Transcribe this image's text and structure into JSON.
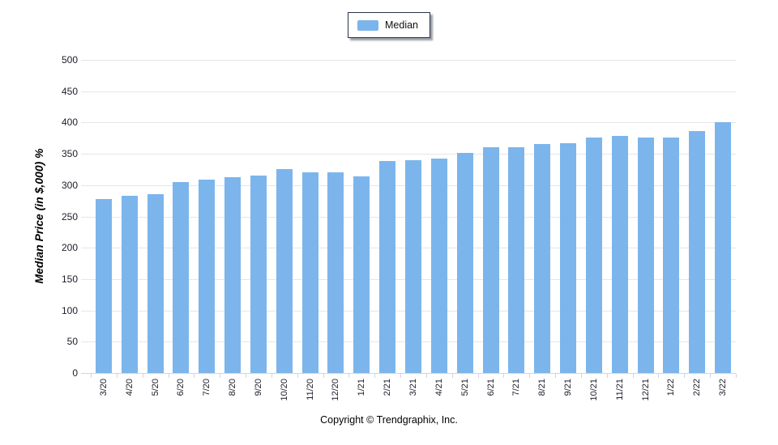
{
  "legend": {
    "label": "Median"
  },
  "footer": {
    "copyright": "Copyright © Trendgraphix, Inc."
  },
  "chart_data": {
    "type": "bar",
    "title": "",
    "categories": [
      "3/20",
      "4/20",
      "5/20",
      "6/20",
      "7/20",
      "8/20",
      "9/20",
      "10/20",
      "11/20",
      "12/20",
      "1/21",
      "2/21",
      "3/21",
      "4/21",
      "5/21",
      "6/21",
      "7/21",
      "8/21",
      "9/21",
      "10/21",
      "11/21",
      "12/21",
      "1/22",
      "2/22",
      "3/22"
    ],
    "series": [
      {
        "name": "Median",
        "color": "#7cb5ec",
        "values": [
          278,
          283,
          285,
          305,
          309,
          313,
          315,
          325,
          321,
          320,
          314,
          338,
          340,
          342,
          351,
          360,
          360,
          365,
          367,
          376,
          378,
          376,
          376,
          386,
          401
        ]
      }
    ],
    "xlabel": "",
    "ylabel": "Median Price (in $,000) %",
    "ylim": [
      0,
      500
    ],
    "yticks": [
      0,
      50,
      100,
      150,
      200,
      250,
      300,
      350,
      400,
      450,
      500
    ],
    "grid": true,
    "legend_position": "top-center",
    "colors": {
      "bar": "#7cb5ec",
      "gridline": "#e6e6e6",
      "axis_line": "#ccd6eb",
      "tick": "#ccd6eb",
      "label": "#1c1c28"
    }
  }
}
